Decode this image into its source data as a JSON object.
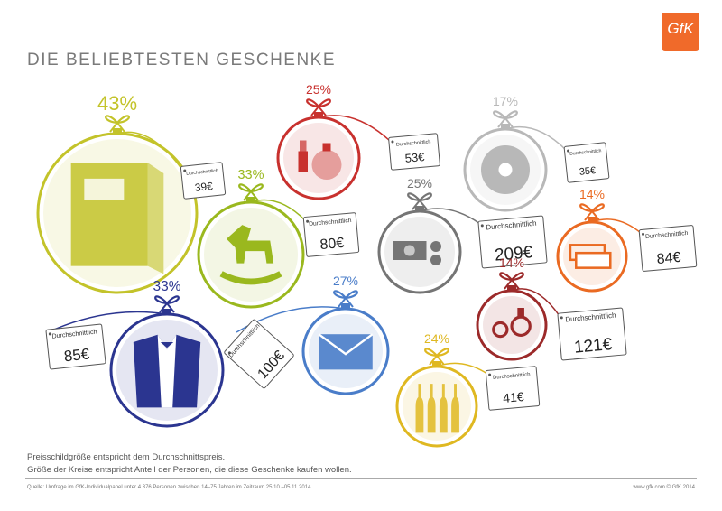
{
  "title": "DIE BELIEBTESTEN GESCHENKE",
  "logo": "GfK",
  "tag_label": "Durchschnittlich",
  "gifts": [
    {
      "id": "books",
      "percent": "43%",
      "price": "39€",
      "color": "#c3c32a",
      "icon": "book-icon"
    },
    {
      "id": "toys",
      "percent": "33%",
      "price": "80€",
      "color": "#9ab81e",
      "icon": "rocking-horse-icon"
    },
    {
      "id": "clothing",
      "percent": "33%",
      "price": "85€",
      "color": "#2b3590",
      "icon": "suit-icon"
    },
    {
      "id": "cosmetics",
      "percent": "25%",
      "price": "53€",
      "color": "#c8312e",
      "icon": "cosmetics-icon"
    },
    {
      "id": "vouchers",
      "percent": "27%",
      "price": "100€",
      "color": "#4a7dc9",
      "icon": "envelope-icon"
    },
    {
      "id": "music-cd",
      "percent": "17%",
      "price": "35€",
      "color": "#b8b8b8",
      "icon": "cd-icon"
    },
    {
      "id": "cash",
      "percent": "25%",
      "price": "209€",
      "color": "#757575",
      "icon": "money-icon"
    },
    {
      "id": "tickets",
      "percent": "14%",
      "price": "84€",
      "color": "#ea6a22",
      "icon": "tickets-icon"
    },
    {
      "id": "jewelry",
      "percent": "14%",
      "price": "121€",
      "color": "#9c2a2a",
      "icon": "jewelry-icon"
    },
    {
      "id": "drinks",
      "percent": "24%",
      "price": "41€",
      "color": "#dfb821",
      "icon": "bottles-icon"
    }
  ],
  "notes": [
    "Preisschildgröße entspricht dem Durchschnittspreis.",
    "Größe der Kreise entspricht Anteil der Personen, die diese Geschenke kaufen wollen."
  ],
  "source": "Quelle: Umfrage im GfK-Individualpanel unter 4.376 Personen zwischen 14–75 Jahren im Zeitraum 25.10.–05.11.2014",
  "footer_right": "www.gfk.com   © GfK 2014"
}
